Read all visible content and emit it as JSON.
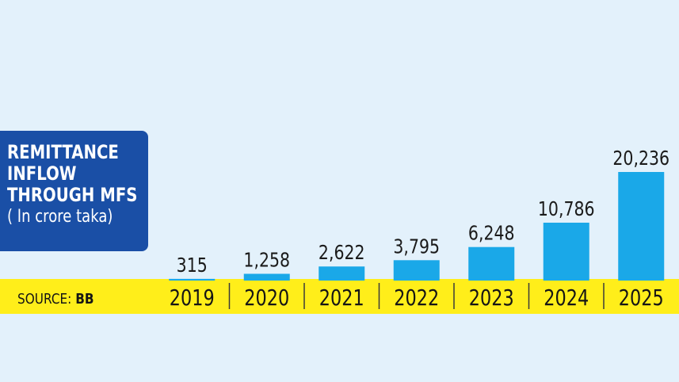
{
  "title_lines": [
    "REMITTANCE",
    "INFLOW",
    "THROUGH MFS"
  ],
  "subtitle": "( In crore taka)",
  "source": {
    "label": "SOURCE:",
    "value": "BB"
  },
  "colors": {
    "bar": "#1aa8e8",
    "band": "#ffee1a",
    "title_box": "#1a4fa6",
    "background": "#e3f1fb"
  },
  "chart_data": {
    "type": "bar",
    "title": "REMITTANCE INFLOW THROUGH MFS",
    "subtitle": "( In crore taka)",
    "xlabel": "",
    "ylabel": "",
    "categories": [
      "2019",
      "2020",
      "2021",
      "2022",
      "2023",
      "2024",
      "2025"
    ],
    "values": [
      315,
      1258,
      2622,
      3795,
      6248,
      10786,
      20236
    ],
    "value_labels": [
      "315",
      "1,258",
      "2,622",
      "3,795",
      "6,248",
      "10,786",
      "20,236"
    ],
    "ylim": [
      0,
      20236
    ],
    "grid": false,
    "legend": "none"
  }
}
